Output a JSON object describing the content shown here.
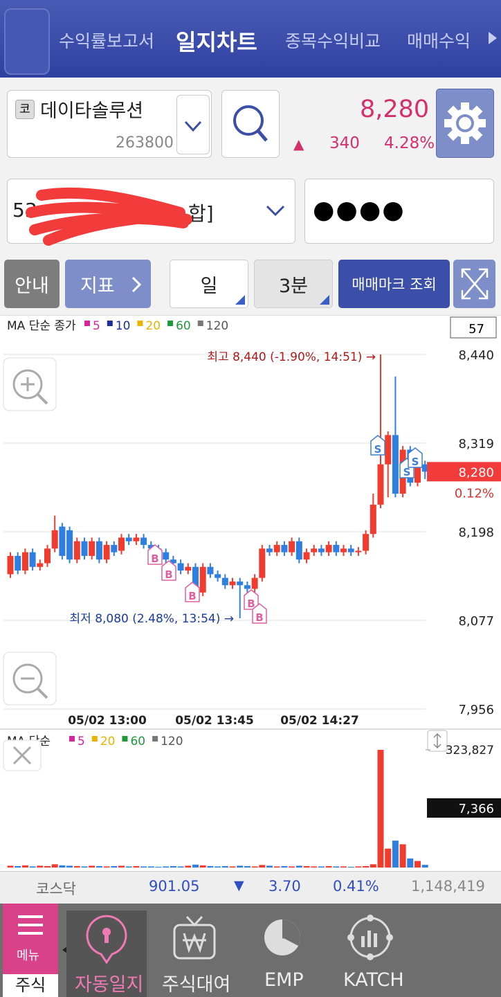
{
  "header": {
    "tabs": [
      "수익률보고서",
      "일지차트",
      "종목수익비교",
      "매매수익"
    ]
  },
  "stock": {
    "badge": "코",
    "name": "데이타솔루션",
    "code": "263800",
    "price": "8,280",
    "arrow": "▲",
    "change": "340",
    "rate": "4.28%"
  },
  "account": {
    "number_start": "53",
    "number_end": "합]",
    "password": "●●●●"
  },
  "toolbar": [
    "안내",
    "지표",
    "일",
    "3분",
    "매매마크 조회"
  ],
  "price_chart": {
    "type": "candlestick",
    "legend_title": "MA 단순 종가",
    "ma": [
      {
        "name": "5",
        "color": "#d6249f"
      },
      {
        "name": "10",
        "color": "#1a2f9a"
      },
      {
        "name": "20",
        "color": "#e8b400"
      },
      {
        "name": "60",
        "color": "#1f9a3a"
      },
      {
        "name": "120",
        "color": "#777777"
      }
    ],
    "count": "57",
    "ylim": [
      7956,
      8440
    ],
    "yticks": [
      {
        "value": 8440,
        "label": "8,440"
      },
      {
        "value": 8319,
        "label": "8,319"
      },
      {
        "value": 8198,
        "label": "8,198"
      },
      {
        "value": 8077,
        "label": "8,077"
      },
      {
        "value": 7956,
        "label": "7,956"
      }
    ],
    "open": [
      8140,
      8165,
      8145,
      8170,
      8150,
      8155,
      8175,
      8205,
      8200,
      8160,
      8185,
      8165,
      8185,
      8160,
      8180,
      8172,
      8190,
      8185,
      8190,
      8180,
      8175,
      8170,
      8160,
      8155,
      8145,
      8150,
      8115,
      8150,
      8140,
      8135,
      8125,
      8130,
      8125,
      8120,
      8135,
      8175,
      8170,
      8180,
      8170,
      8185,
      8160,
      8170,
      8175,
      8170,
      8180,
      8170,
      8175,
      8170,
      8172,
      8195,
      8235,
      8290,
      8330,
      8250,
      8310,
      8265,
      8290
    ],
    "high": [
      8170,
      8170,
      8175,
      8175,
      8160,
      8180,
      8220,
      8210,
      8205,
      8190,
      8190,
      8190,
      8190,
      8185,
      8185,
      8195,
      8195,
      8195,
      8195,
      8185,
      8180,
      8175,
      8165,
      8160,
      8155,
      8155,
      8155,
      8155,
      8145,
      8140,
      8135,
      8135,
      8130,
      8140,
      8180,
      8180,
      8185,
      8185,
      8190,
      8190,
      8175,
      8180,
      8180,
      8185,
      8185,
      8180,
      8180,
      8177,
      8200,
      8250,
      8440,
      8335,
      8410,
      8315,
      8315,
      8300,
      8295
    ],
    "low": [
      8135,
      8140,
      8140,
      8145,
      8145,
      8150,
      8170,
      8160,
      8155,
      8155,
      8160,
      8160,
      8155,
      8155,
      8165,
      8167,
      8180,
      8180,
      8175,
      8170,
      8165,
      8155,
      8150,
      8140,
      8140,
      8110,
      8110,
      8135,
      8130,
      8120,
      8120,
      8080,
      8115,
      8115,
      8130,
      8165,
      8165,
      8165,
      8165,
      8155,
      8155,
      8165,
      8165,
      8165,
      8165,
      8165,
      8165,
      8165,
      8167,
      8190,
      8230,
      8245,
      8245,
      8245,
      8260,
      8260,
      8270
    ],
    "close": [
      8165,
      8145,
      8170,
      8150,
      8155,
      8175,
      8200,
      8165,
      8160,
      8185,
      8165,
      8185,
      8160,
      8180,
      8170,
      8190,
      8185,
      8190,
      8180,
      8175,
      8170,
      8160,
      8155,
      8145,
      8150,
      8115,
      8150,
      8140,
      8135,
      8125,
      8130,
      8125,
      8120,
      8135,
      8175,
      8170,
      8180,
      8170,
      8185,
      8160,
      8170,
      8175,
      8170,
      8180,
      8170,
      8175,
      8170,
      8172,
      8195,
      8235,
      8290,
      8330,
      8250,
      8310,
      8265,
      8290,
      8280
    ],
    "current": {
      "value": 8280,
      "label": "8,280"
    },
    "current_change": "0.12%",
    "high_note": "최고 8,440 (-1.90%, 14:51) →",
    "low_note": "최저 8,080 (2.48%, 13:54) →",
    "x_labels": [
      "05/02 13:00",
      "05/02 13:45",
      "05/02 14:27"
    ],
    "trade_marks": [
      "B",
      "B",
      "B",
      "B",
      "B",
      "S",
      "S",
      "S"
    ]
  },
  "volume_chart": {
    "type": "bar",
    "legend_title": "MA 단순",
    "ma": [
      {
        "name": "5",
        "color": "#d6249f"
      },
      {
        "name": "20",
        "color": "#e8b400"
      },
      {
        "name": "60",
        "color": "#1f9a3a"
      },
      {
        "name": "120",
        "color": "#777777"
      }
    ],
    "ylim": [
      0,
      323827
    ],
    "yticks": [
      {
        "value": 323827,
        "label": "323,827"
      }
    ],
    "values": [
      5000,
      4000,
      6000,
      3000,
      5000,
      4000,
      9000,
      6000,
      5000,
      4000,
      3000,
      5000,
      4000,
      3000,
      4000,
      5000,
      3000,
      4000,
      3000,
      3000,
      2000,
      3000,
      4000,
      3000,
      5000,
      8000,
      6000,
      4000,
      3000,
      4000,
      3000,
      5000,
      4000,
      3000,
      7000,
      5000,
      3000,
      4000,
      3000,
      5000,
      4000,
      3000,
      3000,
      4000,
      3000,
      3000,
      2000,
      3000,
      4000,
      9000,
      323827,
      52000,
      74000,
      64000,
      25000,
      18000,
      7366
    ],
    "current": {
      "value": 7366,
      "label": "7,366"
    }
  },
  "index_bar": {
    "name": "코스닥",
    "value": "901.05",
    "arrow": "▼",
    "change": "3.70",
    "rate": "0.41%",
    "volume": "1,148,419"
  },
  "nav": [
    "메뉴",
    "주식",
    "자동일지",
    "주식대여",
    "EMP",
    "KATCH"
  ]
}
